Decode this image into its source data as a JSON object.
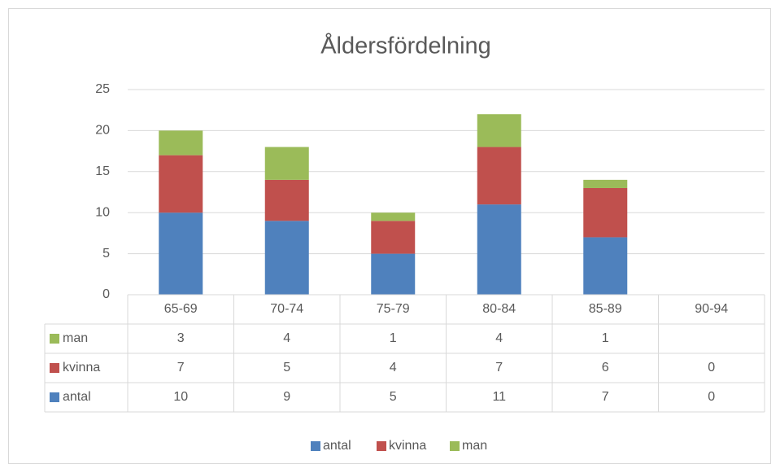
{
  "chart_data": {
    "type": "bar",
    "stacked": true,
    "title": "Åldersfördelning",
    "categories": [
      "65-69",
      "70-74",
      "75-79",
      "80-84",
      "85-89",
      "90-94"
    ],
    "series": [
      {
        "name": "antal",
        "color": "#4f81bd",
        "values": [
          10,
          9,
          5,
          11,
          7,
          0
        ]
      },
      {
        "name": "kvinna",
        "color": "#c0504d",
        "values": [
          7,
          5,
          4,
          7,
          6,
          0
        ]
      },
      {
        "name": "man",
        "color": "#9bbb59",
        "values": [
          3,
          4,
          1,
          4,
          1,
          null
        ]
      }
    ],
    "ylim": [
      0,
      25
    ],
    "yticks": [
      0,
      5,
      10,
      15,
      20,
      25
    ],
    "grid": true,
    "data_table": true,
    "legend": "bottom"
  }
}
